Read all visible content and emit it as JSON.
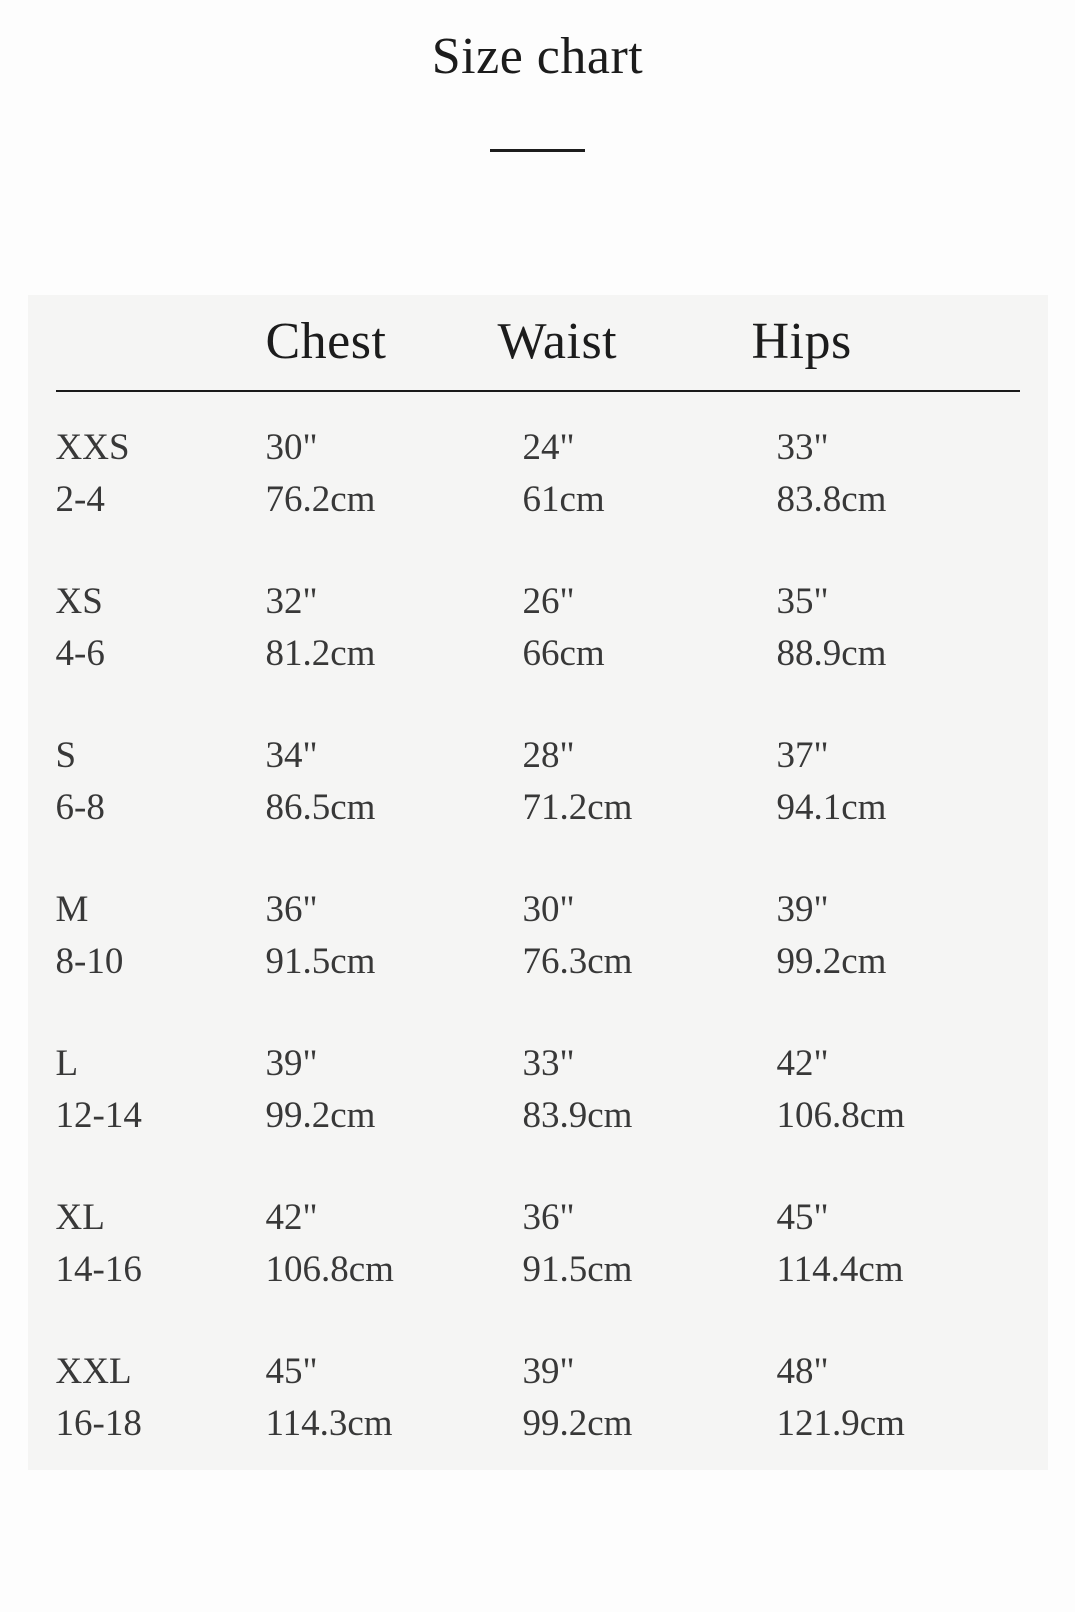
{
  "page": {
    "title": "Size chart",
    "background": "#fdfdfd"
  },
  "panel": {
    "background": "#f5f5f4",
    "rule_color": "#1a1a1a",
    "text_color": "#383838",
    "heading_color": "#1c1c1c"
  },
  "table": {
    "columns": [
      "Chest",
      "Waist",
      "Hips"
    ],
    "rows": [
      {
        "size": "XXS",
        "range": "2-4",
        "chest_in": "30\"",
        "chest_cm": "76.2cm",
        "waist_in": "24\"",
        "waist_cm": "61cm",
        "hips_in": "33\"",
        "hips_cm": "83.8cm"
      },
      {
        "size": "XS",
        "range": "4-6",
        "chest_in": "32\"",
        "chest_cm": "81.2cm",
        "waist_in": "26\"",
        "waist_cm": "66cm",
        "hips_in": "35\"",
        "hips_cm": "88.9cm"
      },
      {
        "size": "S",
        "range": "6-8",
        "chest_in": "34\"",
        "chest_cm": "86.5cm",
        "waist_in": "28\"",
        "waist_cm": "71.2cm",
        "hips_in": "37\"",
        "hips_cm": "94.1cm"
      },
      {
        "size": "M",
        "range": "8-10",
        "chest_in": "36\"",
        "chest_cm": "91.5cm",
        "waist_in": "30\"",
        "waist_cm": "76.3cm",
        "hips_in": "39\"",
        "hips_cm": "99.2cm"
      },
      {
        "size": "L",
        "range": "12-14",
        "chest_in": "39\"",
        "chest_cm": "99.2cm",
        "waist_in": "33\"",
        "waist_cm": "83.9cm",
        "hips_in": "42\"",
        "hips_cm": "106.8cm"
      },
      {
        "size": "XL",
        "range": "14-16",
        "chest_in": "42\"",
        "chest_cm": "106.8cm",
        "waist_in": "36\"",
        "waist_cm": "91.5cm",
        "hips_in": "45\"",
        "hips_cm": "114.4cm"
      },
      {
        "size": "XXL",
        "range": "16-18",
        "chest_in": "45\"",
        "chest_cm": "114.3cm",
        "waist_in": "39\"",
        "waist_cm": "99.2cm",
        "hips_in": "48\"",
        "hips_cm": "121.9cm"
      }
    ]
  }
}
